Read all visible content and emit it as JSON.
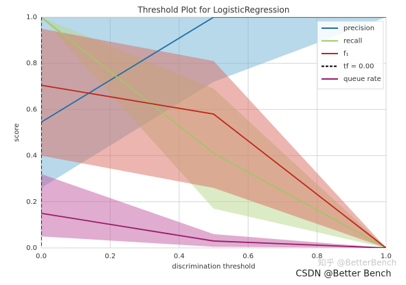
{
  "chart_data": {
    "type": "threshold",
    "title": "Threshold Plot for LogisticRegression",
    "xlabel": "discrimination threshold",
    "ylabel": "score",
    "x": [
      0,
      0.5,
      1.0
    ],
    "series": [
      {
        "name": "precision",
        "color": "#1f6fa8",
        "band_color": "#6fb3d6",
        "values": [
          0.545,
          1.0,
          1.0
        ],
        "lower": [
          0.26,
          0.72,
          1.0
        ],
        "upper": [
          1.0,
          1.0,
          1.0
        ]
      },
      {
        "name": "recall",
        "color": "#a3c46a",
        "band_color": "#b8d88c",
        "values": [
          1.0,
          0.41,
          0.0
        ],
        "lower": [
          1.0,
          0.17,
          0.0
        ],
        "upper": [
          1.0,
          0.69,
          0.0
        ]
      },
      {
        "name": "f₁",
        "color": "#c0261c",
        "band_color": "#d96b60",
        "values": [
          0.705,
          0.58,
          0.0
        ],
        "lower": [
          0.4,
          0.26,
          0.0
        ],
        "upper": [
          0.95,
          0.81,
          0.0
        ]
      },
      {
        "name": "queue rate",
        "color": "#9a1b6c",
        "band_color": "#c25aa0",
        "values": [
          0.15,
          0.03,
          0.0
        ],
        "lower": [
          0.05,
          0.005,
          0.0
        ],
        "upper": [
          0.32,
          0.06,
          0.0
        ]
      }
    ],
    "threshold": {
      "value": 0,
      "label": "tf = 0.00"
    },
    "xlim": [
      0,
      1.0
    ],
    "ylim": [
      0,
      1.0
    ],
    "xticks": [
      {
        "value": 0,
        "label": "0.0"
      },
      {
        "value": 0.2,
        "label": "0.2"
      },
      {
        "value": 0.4,
        "label": "0.4"
      },
      {
        "value": 0.6,
        "label": "0.6"
      },
      {
        "value": 0.8,
        "label": "0.8"
      },
      {
        "value": 1.0,
        "label": "1.0"
      }
    ],
    "yticks": [
      {
        "value": 0,
        "label": "0.0"
      },
      {
        "value": 0.2,
        "label": "0.2"
      },
      {
        "value": 0.4,
        "label": "0.4"
      },
      {
        "value": 0.6,
        "label": "0.6"
      },
      {
        "value": 0.8,
        "label": "0.8"
      },
      {
        "value": 1.0,
        "label": "1.0"
      }
    ],
    "grid": true,
    "legend": "upper right",
    "watermarks": [
      "知乎 @BetterBench",
      "CSDN @Better Bench"
    ]
  }
}
